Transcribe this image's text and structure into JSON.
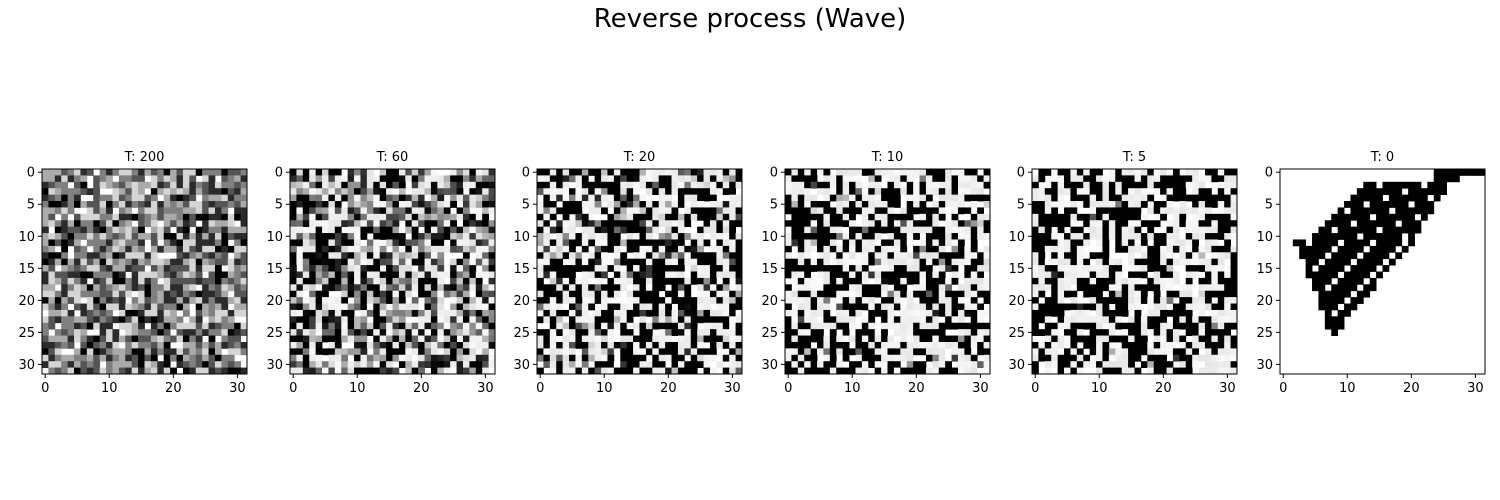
{
  "figure": {
    "title": "Reverse process (Wave)"
  },
  "chart_data": {
    "type": "heatmap",
    "title": "Reverse process (Wave)",
    "grid": false,
    "colormap": "gray",
    "panels": [
      {
        "title": "T: 200",
        "noise": 1.0,
        "binary": 0.0
      },
      {
        "title": "T: 60",
        "noise": 0.75,
        "binary": 0.45
      },
      {
        "title": "T: 20",
        "noise": 0.5,
        "binary": 0.85
      },
      {
        "title": "T: 10",
        "noise": 0.45,
        "binary": 0.95
      },
      {
        "title": "T: 5",
        "noise": 0.32,
        "binary": 0.98
      },
      {
        "title": "T: 0",
        "noise": 0.0,
        "binary": 1.0
      }
    ],
    "grid_size": 32,
    "xticks": [
      0,
      10,
      20,
      30
    ],
    "yticks": [
      0,
      5,
      10,
      15,
      20,
      25,
      30
    ],
    "xlim": [
      -0.5,
      31.5
    ],
    "ylim": [
      31.5,
      -0.5
    ]
  }
}
